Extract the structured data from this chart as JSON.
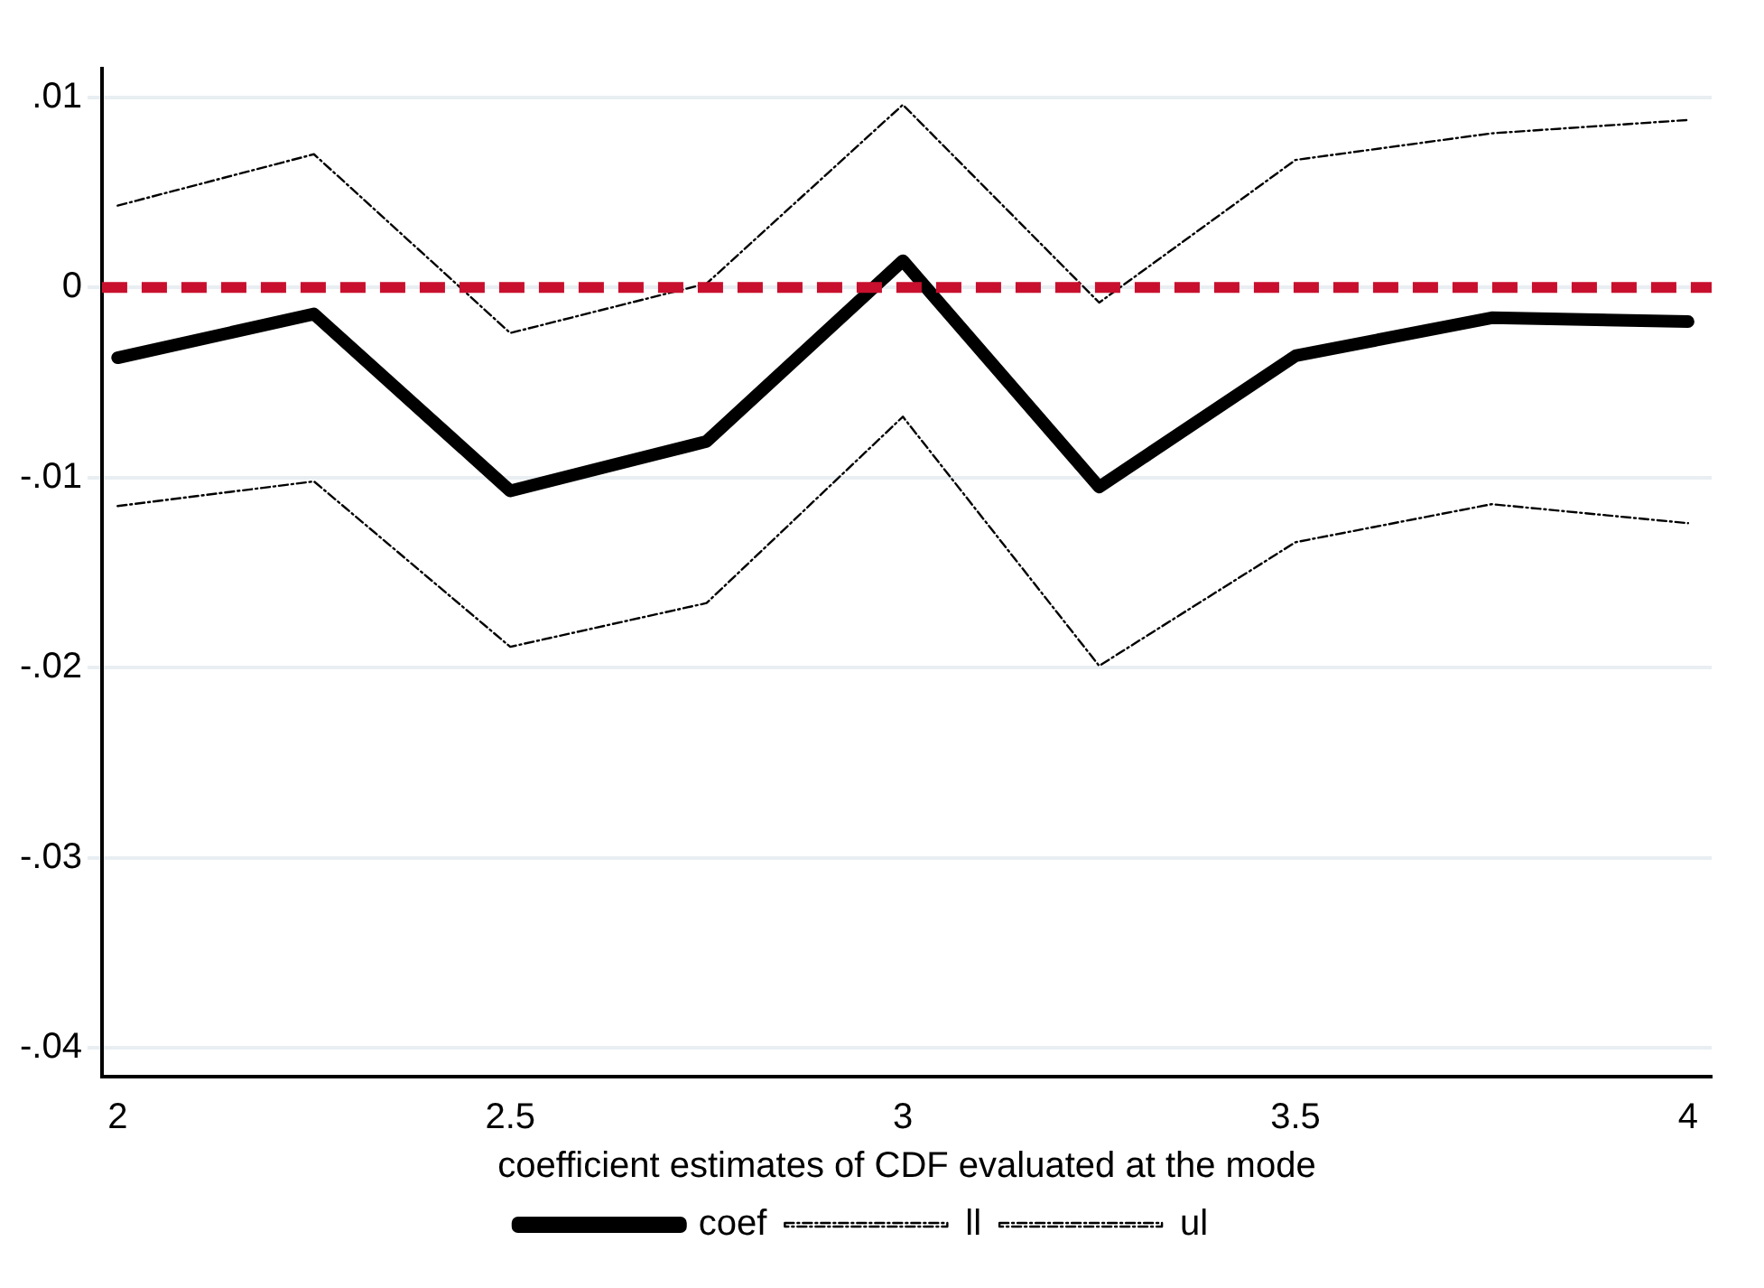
{
  "chart_data": {
    "type": "line",
    "xlabel": "coefficient estimates of CDF evaluated at the mode",
    "x": [
      2,
      2.25,
      2.5,
      2.75,
      3,
      3.25,
      3.5,
      3.75,
      4
    ],
    "series": [
      {
        "name": "coef",
        "color": "#000000",
        "line_style": "solid",
        "values": [
          -0.0037,
          -0.0014,
          -0.0107,
          -0.0081,
          0.0014,
          -0.0105,
          -0.0036,
          -0.0016,
          -0.0018
        ]
      },
      {
        "name": "ll",
        "color": "#000000",
        "line_style": "dashed",
        "values": [
          -0.0115,
          -0.0102,
          -0.0189,
          -0.0166,
          -0.0068,
          -0.0199,
          -0.0134,
          -0.0114,
          -0.0124
        ]
      },
      {
        "name": "ul",
        "color": "#000000",
        "line_style": "dashed",
        "values": [
          0.0043,
          0.007,
          -0.0024,
          0.0002,
          0.0096,
          -0.0008,
          0.0067,
          0.0081,
          0.0088
        ]
      }
    ],
    "xlim": [
      1.98,
      4.03
    ],
    "xticks": [
      2,
      2.5,
      3,
      3.5,
      4
    ],
    "ylim": [
      -0.0415,
      0.0115
    ],
    "yticks": [
      {
        "value": -0.04,
        "label": "-.04"
      },
      {
        "value": -0.03,
        "label": "-.03"
      },
      {
        "value": -0.02,
        "label": "-.02"
      },
      {
        "value": -0.01,
        "label": "-.01"
      },
      {
        "value": 0,
        "label": "0"
      },
      {
        "value": 0.01,
        "label": ".01"
      }
    ],
    "ref_lines": [
      {
        "axis": "y",
        "value": 0,
        "color": "#c8102e",
        "line_style": "dashed"
      }
    ],
    "grid": "y",
    "legend": "bottom",
    "marker": "none"
  }
}
